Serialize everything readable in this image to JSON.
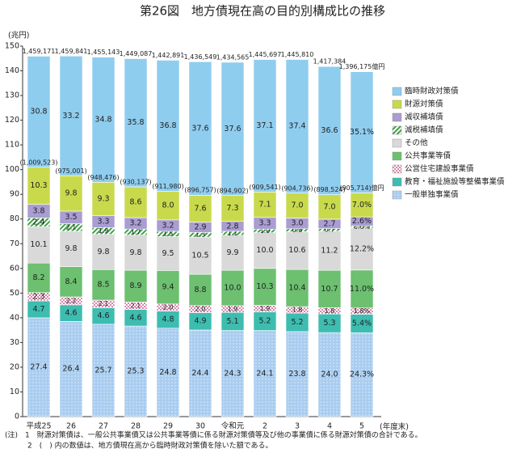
{
  "chart_data": {
    "type": "stacked_bar",
    "title": "第26図　地方債現在高の目的別構成比の推移",
    "y_unit_label": "(兆円)",
    "x_unit_label": "(年度末)",
    "categories": [
      "平成25",
      "26",
      "27",
      "28",
      "29",
      "30",
      "令和元",
      "2",
      "3",
      "4",
      "5"
    ],
    "ylim": [
      0,
      150
    ],
    "yticks": [
      0,
      10,
      20,
      30,
      40,
      50,
      60,
      70,
      80,
      90,
      100,
      110,
      120,
      130,
      140,
      150
    ],
    "grid": false,
    "totals": {
      "values": [
        145.9171,
        145.9841,
        145.5143,
        144.9087,
        144.2891,
        143.6549,
        143.4565,
        144.5697,
        144.581,
        141.7384,
        139.6175
      ],
      "value_labels": [
        "1,459,171",
        "1,459,841",
        "1,455,143",
        "1,449,087",
        "1,442,891",
        "1,436,549",
        "1,434,565",
        "1,445,697",
        "1,445,810",
        "1,417,384",
        "1,396,175億円"
      ]
    },
    "totals_excluding": {
      "values": [
        100.9523,
        97.5001,
        94.8476,
        93.0137,
        91.198,
        89.6757,
        89.4902,
        90.9541,
        90.4736,
        89.8524,
        90.5714
      ],
      "value_labels": [
        "(1,009,523)",
        "(975,001)",
        "(948,476)",
        "(930,137)",
        "(911,980)",
        "(896,757)",
        "(894,902)",
        "(909,541)",
        "(904,736)",
        "(898,524)",
        "(905,714)億円"
      ]
    },
    "series": [
      {
        "name": "一般単独事業債",
        "color": "#a9cdf0",
        "values": [
          27.4,
          26.4,
          25.7,
          25.3,
          24.8,
          24.4,
          24.3,
          24.1,
          23.8,
          24.0,
          24.3
        ],
        "value_labels": [
          "27.4",
          "26.4",
          "25.7",
          "25.3",
          "24.8",
          "24.4",
          "24.3",
          "24.1",
          "23.8",
          "24.0",
          "24.3%"
        ]
      },
      {
        "name": "教育・福祉施設等整備事業債",
        "color": "#3dbdb0",
        "values": [
          4.7,
          4.6,
          4.6,
          4.6,
          4.8,
          4.9,
          5.1,
          5.2,
          5.2,
          5.3,
          5.4
        ],
        "value_labels": [
          "4.7",
          "4.6",
          "4.6",
          "4.6",
          "4.8",
          "4.9",
          "5.1",
          "5.2",
          "5.2",
          "5.3",
          "5.4%"
        ]
      },
      {
        "name": "公営住宅建設事業債",
        "color": "#e9b6cc",
        "values": [
          2.3,
          2.2,
          2.1,
          2.1,
          2.0,
          2.0,
          1.9,
          1.9,
          1.8,
          1.8,
          1.8
        ],
        "value_labels": [
          "2.3",
          "2.2",
          "2.1",
          "2.1",
          "2.0",
          "2.0",
          "1.9",
          "1.9",
          "1.8",
          "1.8",
          "1.8%"
        ]
      },
      {
        "name": "公共事業等債",
        "color": "#6cc070",
        "values": [
          8.2,
          8.4,
          8.5,
          8.9,
          9.4,
          8.8,
          10.0,
          10.3,
          10.4,
          10.7,
          11.0
        ],
        "value_labels": [
          "8.2",
          "8.4",
          "8.5",
          "8.9",
          "9.4",
          "8.8",
          "10.0",
          "10.3",
          "10.4",
          "10.7",
          "11.0%"
        ]
      },
      {
        "name": "その他",
        "color": "#d9d9d9",
        "values": [
          10.1,
          9.8,
          9.8,
          9.8,
          9.5,
          10.5,
          9.9,
          10.0,
          10.6,
          11.2,
          12.2
        ],
        "value_labels": [
          "10.1",
          "9.8",
          "9.8",
          "9.8",
          "9.5",
          "10.5",
          "9.9",
          "10.0",
          "10.6",
          "11.2",
          "12.2%"
        ]
      },
      {
        "name": "減税補填債",
        "color": "#3fa048",
        "values": [
          2.4,
          2.1,
          1.9,
          1.7,
          1.5,
          1.3,
          1.1,
          1.0,
          0.8,
          0.7,
          0.6
        ],
        "value_labels": [
          "2.4",
          "2.1",
          "1.9",
          "1.7",
          "1.5",
          "1.3",
          "1.1",
          "1.0",
          "0.8",
          "0.7",
          "0.6%"
        ]
      },
      {
        "name": "減収補填債",
        "color": "#a99dd2",
        "values": [
          3.8,
          3.5,
          3.3,
          3.2,
          3.2,
          2.9,
          2.8,
          3.3,
          3.0,
          2.7,
          2.6
        ],
        "value_labels": [
          "3.8",
          "3.5",
          "3.3",
          "3.2",
          "3.2",
          "2.9",
          "2.8",
          "3.3",
          "3.0",
          "2.7",
          "2.6%"
        ]
      },
      {
        "name": "財源対策債",
        "color": "#c8da4c",
        "values": [
          10.3,
          9.8,
          9.3,
          8.6,
          8.0,
          7.6,
          7.3,
          7.1,
          7.0,
          7.0,
          7.0
        ],
        "value_labels": [
          "10.3",
          "9.8",
          "9.3",
          "8.6",
          "8.0",
          "7.6",
          "7.3",
          "7.1",
          "7.0",
          "7.0",
          "7.0%"
        ]
      },
      {
        "name": "臨時財政対策債",
        "color": "#8fcdef",
        "values": [
          30.8,
          33.2,
          34.8,
          35.8,
          36.8,
          37.6,
          37.6,
          37.1,
          37.4,
          36.6,
          35.1
        ],
        "value_labels": [
          "30.8",
          "33.2",
          "34.8",
          "35.8",
          "36.8",
          "37.6",
          "37.6",
          "37.1",
          "37.4",
          "36.6",
          "35.1%"
        ]
      }
    ],
    "notes": [
      "(注)　1　財源対策債は、一般公共事業債又は公共事業等債に係る財源対策債等及び他の事業債に係る財源対策債の合計である。",
      "2　(　) 内の数値は、地方債現在高から臨時財政対策債を除いた額である。"
    ]
  }
}
